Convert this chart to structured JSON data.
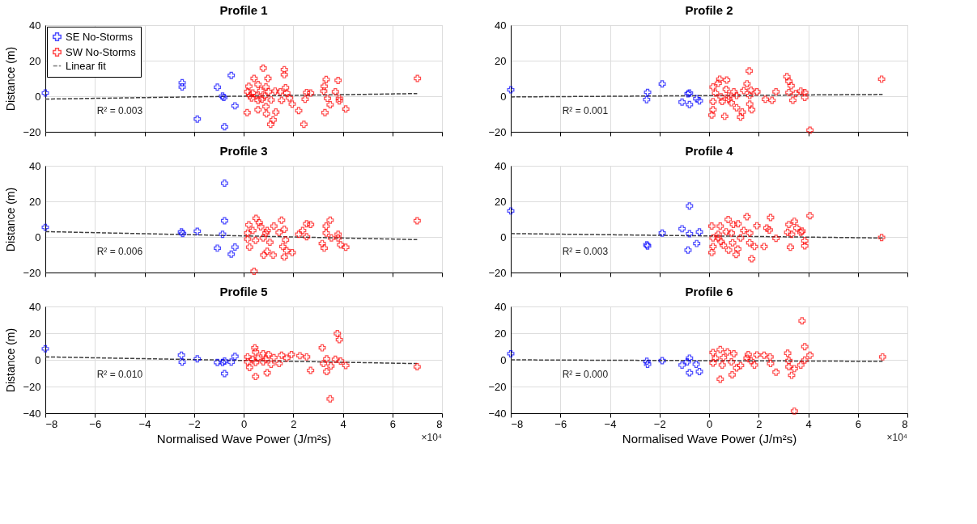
{
  "chart_data": [
    {
      "type": "scatter",
      "title": "Profile 1",
      "ylabel": "Distance (m)",
      "xlim": [
        -8,
        8
      ],
      "xticks": [
        -8,
        -6,
        -4,
        -2,
        0,
        2,
        4,
        6,
        8
      ],
      "ylim": [
        -20,
        40
      ],
      "yticks": [
        -20,
        0,
        20,
        40
      ],
      "grid": true,
      "marker": "cross",
      "legend": "top left",
      "tick_labels": "y",
      "annotations": [
        "R² = 0.003"
      ],
      "series": [
        {
          "name": "SE No-Storms",
          "color": "#0000ff",
          "x": [
            -8.0,
            -2.48,
            -2.48,
            -0.5,
            -1.06,
            -0.85,
            -0.8,
            -0.35,
            -1.87,
            -0.77
          ],
          "values": [
            1.8,
            7.6,
            5.2,
            11.7,
            5.1,
            0.1,
            -0.7,
            -5.4,
            -12.8,
            -17.2
          ]
        },
        {
          "name": "SW No-Storms",
          "color": "#ff0000",
          "x": [
            0.79,
            1.64,
            1.64,
            0.42,
            0.98,
            3.33,
            3.81,
            7.01,
            0.21,
            0.58,
            0.9,
            1.69,
            3.25,
            3.23,
            3.7,
            2.54,
            2.7,
            0.16,
            0.37,
            0.69,
            1.0,
            1.27,
            1.48,
            1.74,
            0.32,
            0.58,
            0.74,
            1.11,
            1.53,
            1.85,
            2.48,
            3.38,
            3.86,
            3.86,
            1.96,
            0.9,
            0.58,
            3.49,
            4.12,
            0.14,
            0.92,
            1.3,
            2.22,
            3.28,
            1.19,
            1.09,
            2.43,
            0.26,
            0.53,
            0.85
          ],
          "values": [
            15.8,
            14.9,
            12.1,
            10,
            10,
            9.4,
            8.9,
            10,
            5.6,
            6.6,
            5.2,
            4.8,
            5.6,
            2.9,
            2.5,
            2.1,
            1.8,
            2.5,
            1.8,
            3.2,
            2.5,
            2.9,
            2.5,
            1.8,
            -1,
            -2.3,
            -1.7,
            -2.1,
            -2.3,
            -1,
            -1.7,
            -1.2,
            -1.2,
            -2.6,
            -4.4,
            -5.8,
            -7.6,
            -4.8,
            -7.2,
            -9.2,
            -9.9,
            -8.9,
            -8.1,
            -9.2,
            -13.3,
            -15.8,
            -15.8,
            0.4,
            0.4,
            0.1
          ]
        },
        {
          "name": "Linear fit",
          "type": "line",
          "line_style": "dashed",
          "color": "#404040",
          "marker": "none",
          "x": [
            -8,
            7
          ],
          "values": [
            -1.6,
            1.5
          ]
        }
      ]
    },
    {
      "type": "scatter",
      "title": "Profile 2",
      "xlim": [
        -8,
        8
      ],
      "xticks": [
        -8,
        -6,
        -4,
        -2,
        0,
        2,
        4,
        6,
        8
      ],
      "ylim": [
        -20,
        40
      ],
      "yticks": [
        -20,
        0,
        20,
        40
      ],
      "grid": true,
      "marker": "cross",
      "tick_labels": "y",
      "annotations": [
        "R² = 0.001"
      ],
      "series": [
        {
          "color": "#0000ff",
          "x": [
            -8,
            -2.48,
            -2.52,
            -1.89,
            -0.85,
            -0.79,
            -1.09,
            -0.79,
            -0.5,
            -0.39
          ],
          "values": [
            3.6,
            2.2,
            -1.9,
            6.9,
            1.4,
            1.8,
            -3.3,
            -4.7,
            -1.4,
            -2.6
          ]
        },
        {
          "color": "#ff0000",
          "x": [
            1.62,
            0.43,
            0.71,
            0.37,
            3.14,
            3.22,
            3.31,
            6.96,
            1.53,
            0.16,
            0.69,
            1.0,
            1.4,
            1.69,
            1.93,
            2.7,
            3.22,
            3.7,
            3.86,
            3.49,
            0.26,
            0.48,
            0.79,
            1.11,
            1.64,
            2.27,
            2.54,
            3.38,
            3.86,
            0.16,
            0.53,
            0.9,
            1.64,
            1.11,
            0.16,
            1.72,
            1.34,
            0.11,
            0.63,
            1.27,
            4.07,
            0.79
          ],
          "values": [
            14.2,
            9.6,
            9.1,
            7.3,
            11,
            8.4,
            5.9,
            9.6,
            7,
            5.2,
            3.9,
            2.5,
            3.2,
            3.4,
            2.5,
            2.5,
            2.1,
            2.9,
            2.1,
            1.5,
            1.8,
            -0.3,
            0.1,
            0.4,
            0.4,
            -1.7,
            -2.3,
            -2.3,
            -0.7,
            -3,
            -3,
            -3.7,
            -4.4,
            -6.5,
            -7.6,
            -7.6,
            -8.9,
            -10.6,
            -11.3,
            -11.7,
            -19.1,
            -1.7
          ]
        },
        {
          "type": "line",
          "line_style": "dashed",
          "color": "#404040",
          "marker": "none",
          "x": [
            -8,
            7
          ],
          "values": [
            -0.4,
            1.0
          ]
        }
      ]
    },
    {
      "type": "scatter",
      "title": "Profile 3",
      "ylabel": "Distance (m)",
      "xlim": [
        -8,
        8
      ],
      "xticks": [
        -8,
        -6,
        -4,
        -2,
        0,
        2,
        4,
        6,
        8
      ],
      "ylim": [
        -20,
        40
      ],
      "yticks": [
        -20,
        0,
        20,
        40
      ],
      "grid": true,
      "marker": "cross",
      "tick_labels": "y",
      "annotations": [
        "R² = 0.006"
      ],
      "series": [
        {
          "color": "#0000ff",
          "x": [
            -8,
            -2.51,
            -2.46,
            -1.87,
            -0.77,
            -0.77,
            -0.85,
            -1.06,
            -0.35,
            -0.5
          ],
          "values": [
            5.4,
            2.8,
            1.9,
            3.2,
            30.2,
            9.1,
            1.5,
            -6.3,
            -5.7,
            -9.7
          ]
        },
        {
          "color": "#ff0000",
          "x": [
            0.5,
            0.21,
            0.63,
            0.69,
            1.53,
            1.22,
            3.49,
            3.33,
            7.0,
            2.54,
            2.7,
            2.38,
            2.22,
            1.64,
            1.43,
            0.95,
            0.37,
            0.16,
            3.33,
            3.81,
            2.54,
            3.54,
            3.81,
            0.16,
            0.48,
            0.79,
            1.06,
            1.69,
            3.17,
            3.91,
            4.12,
            0.24,
            1.58,
            1.74,
            1.96,
            0.95,
            0.81,
            1.19,
            1.64,
            3.25,
            0.42,
            0.9
          ],
          "values": [
            10.5,
            6.8,
            8,
            5.7,
            9.4,
            6.1,
            9.4,
            6.1,
            9.1,
            7.4,
            7,
            3.6,
            1.5,
            4.3,
            2.5,
            3.6,
            3.6,
            2.2,
            2.2,
            1.5,
            0.1,
            -0.6,
            -0.6,
            -1.2,
            -1.9,
            -0.6,
            -3,
            -1.7,
            -3.7,
            -4.4,
            -5.8,
            -5.7,
            -5.4,
            -7.7,
            -8.8,
            -8.1,
            -10.2,
            -10.2,
            -11.3,
            -6.3,
            -19.3,
            2.2
          ]
        },
        {
          "type": "line",
          "line_style": "dashed",
          "color": "#404040",
          "marker": "none",
          "x": [
            -8,
            7
          ],
          "values": [
            3.0,
            -1.5
          ]
        }
      ]
    },
    {
      "type": "scatter",
      "title": "Profile 4",
      "xlim": [
        -8,
        8
      ],
      "xticks": [
        -8,
        -6,
        -4,
        -2,
        0,
        2,
        4,
        6,
        8
      ],
      "ylim": [
        -20,
        40
      ],
      "yticks": [
        -20,
        0,
        20,
        40
      ],
      "grid": true,
      "marker": "cross",
      "tick_labels": "y",
      "annotations": [
        "R² = 0.003"
      ],
      "series": [
        {
          "color": "#0000ff",
          "x": [
            -8,
            -0.79,
            -1.09,
            -0.79,
            -0.39,
            -1.89,
            -2.51,
            -2.48,
            -0.5,
            -0.85
          ],
          "values": [
            14.6,
            17.4,
            4.6,
            1.8,
            2.8,
            2.2,
            -4.4,
            -5.1,
            -3.7,
            -7.4
          ]
        },
        {
          "color": "#ff0000",
          "x": [
            1.53,
            2.48,
            4.07,
            0.77,
            3.44,
            0.11,
            0.45,
            0.98,
            1.17,
            1.93,
            3.22,
            2.33,
            2.43,
            3.54,
            1.4,
            1.64,
            3.17,
            3.33,
            3.7,
            3.75,
            6.96,
            0.37,
            0.69,
            0.9,
            1.27,
            2.7,
            3.86,
            3.86,
            0.16,
            0.48,
            0.95,
            1.64,
            1.83,
            2.22,
            3.28,
            0.16,
            0.58,
            0.79,
            1.16,
            0.11,
            1.09,
            1.72,
            0.37
          ],
          "values": [
            11.4,
            10.9,
            11.9,
            9.8,
            8.8,
            6.1,
            6.1,
            7,
            7.4,
            6.3,
            7,
            5,
            3.9,
            5,
            3.6,
            2.2,
            2.6,
            1.5,
            2.6,
            3.3,
            -0.3,
            1.5,
            2.9,
            2.2,
            -0.6,
            -0.8,
            -2.2,
            -5,
            -0.6,
            -2.6,
            -3.3,
            -3.3,
            -5.4,
            -5.4,
            -5.8,
            -5.4,
            -4.7,
            -7.4,
            -6.8,
            -8.8,
            -9.9,
            -12.3,
            -0.6
          ]
        },
        {
          "type": "line",
          "line_style": "dashed",
          "color": "#404040",
          "marker": "none",
          "x": [
            -8,
            7
          ],
          "values": [
            1.9,
            -0.6
          ]
        }
      ]
    },
    {
      "type": "scatter",
      "title": "Profile 5",
      "xlabel": "Normalised Wave Power (J/m²s)",
      "ylabel": "Distance (m)",
      "xlim": [
        -8,
        8
      ],
      "xticks": [
        -8,
        -6,
        -4,
        -2,
        0,
        2,
        4,
        6,
        8
      ],
      "ylim": [
        -40,
        40
      ],
      "yticks": [
        -40,
        -20,
        0,
        20,
        40
      ],
      "grid": true,
      "marker": "cross",
      "annotations": [
        "R² = 0.010",
        "×10⁴"
      ],
      "series": [
        {
          "color": "#0000ff",
          "x": [
            -8,
            -2.51,
            -2.48,
            -1.87,
            -1.06,
            -0.85,
            -0.77,
            -0.5,
            -0.35,
            -0.77
          ],
          "values": [
            8.3,
            3.5,
            -1.7,
            0.7,
            -2,
            -2,
            -0.9,
            -1.7,
            2.6,
            -10.3
          ]
        },
        {
          "color": "#ff0000",
          "x": [
            0.45,
            3.78,
            3.86,
            3.17,
            3.49,
            7.0,
            0.16,
            0.48,
            0.79,
            1.0,
            1.53,
            1.93,
            2.27,
            2.54,
            0.58,
            1.22,
            1.74,
            0.16,
            0.48,
            0.79,
            1.11,
            1.43,
            0.24,
            0.95,
            0.48,
            2.7,
            3.22,
            3.35,
            3.7,
            3.91,
            3.52,
            3.35,
            4.12,
            0.37,
            0.9
          ],
          "values": [
            9,
            19.7,
            15.1,
            9,
            -29.3,
            -5.2,
            2.2,
            5.9,
            4.6,
            4,
            3.5,
            4,
            3.1,
            2.2,
            1.3,
            1.7,
            1.3,
            -1.5,
            -2,
            -1.5,
            -3.3,
            -2.8,
            -5.7,
            -9.7,
            -12.5,
            -7.9,
            -2.8,
            0.7,
            0.4,
            -0.9,
            -4.6,
            -8.8,
            -4.2,
            0.4,
            0.4
          ]
        },
        {
          "type": "line",
          "line_style": "dashed",
          "color": "#404040",
          "marker": "none",
          "x": [
            -8,
            7
          ],
          "values": [
            2.2,
            -2.8
          ]
        }
      ]
    },
    {
      "type": "scatter",
      "title": "Profile 6",
      "xlabel": "Normalised Wave Power (J/m²s)",
      "xlim": [
        -8,
        8
      ],
      "xticks": [
        -8,
        -6,
        -4,
        -2,
        0,
        2,
        4,
        6,
        8
      ],
      "ylim": [
        -40,
        40
      ],
      "yticks": [
        -40,
        -20,
        0,
        20,
        40
      ],
      "grid": true,
      "marker": "cross",
      "annotations": [
        "R² = 0.000",
        "×10⁴"
      ],
      "series": [
        {
          "color": "#0000ff",
          "x": [
            -8,
            -2.51,
            -2.48,
            -1.89,
            -0.79,
            -0.88,
            -1.09,
            -0.52,
            -0.79,
            -0.39
          ],
          "values": [
            4.6,
            -1.1,
            -3.3,
            -0.6,
            1.3,
            -1.5,
            -3.9,
            -3.3,
            -9.7,
            -8.8
          ]
        },
        {
          "color": "#ff0000",
          "x": [
            3.75,
            3.86,
            7.0,
            0.16,
            0.45,
            0.74,
            1.0,
            1.58,
            1.93,
            2.22,
            2.46,
            3.17,
            4.07,
            0.26,
            0.58,
            1.53,
            0.16,
            0.53,
            0.9,
            1.27,
            1.11,
            1.83,
            2.48,
            3.22,
            3.22,
            3.44,
            3.7,
            3.86,
            2.7,
            3.33,
            0.93,
            0.45,
            3.44,
            1.69
          ],
          "values": [
            29.2,
            9.9,
            2.2,
            5.5,
            7.7,
            5.9,
            4.6,
            4,
            3.7,
            3.5,
            2.2,
            5,
            3.5,
            1.3,
            1.7,
            1.3,
            -2.4,
            -3.9,
            -1.5,
            -4.2,
            -6.1,
            -3.9,
            -2.8,
            -0.6,
            -5.2,
            -6.6,
            -3.9,
            -0.2,
            -9.2,
            -11.6,
            -11.2,
            -14.5,
            -38.4,
            -0.6
          ]
        },
        {
          "type": "line",
          "line_style": "dashed",
          "color": "#404040",
          "marker": "none",
          "x": [
            -8,
            7
          ],
          "values": [
            0,
            -1.1
          ]
        }
      ]
    }
  ]
}
